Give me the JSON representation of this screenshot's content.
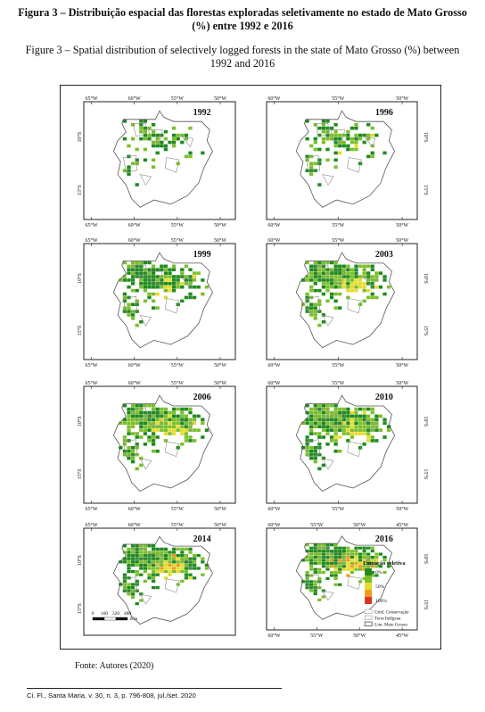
{
  "caption_pt": "Figura 3 – Distribuição espacial das florestas exploradas seletivamente no estado de Mato Grosso (%) entre 1992 e 2016",
  "caption_en": "Figure 3 – Spatial distribution of selectively logged forests in the state of Mato Grosso (%) between 1992 and 2016",
  "panels": [
    {
      "year": "1992",
      "top_ticks": [
        "65°W",
        "60°W",
        "55°W",
        "50°W"
      ],
      "bottom_ticks": [
        "65°W",
        "60°W",
        "55°W",
        "50°W"
      ],
      "left_ticks": [
        "10°S",
        "15°S"
      ],
      "right_ticks": []
    },
    {
      "year": "1996",
      "top_ticks": [
        "60°W",
        "55°W",
        "50°W"
      ],
      "bottom_ticks": [
        "60°W",
        "55°W",
        "50°W"
      ],
      "left_ticks": [],
      "right_ticks": [
        "10°S",
        "15°S"
      ]
    },
    {
      "year": "1999",
      "top_ticks": [
        "65°W",
        "60°W",
        "55°W",
        "50°W"
      ],
      "bottom_ticks": [
        "65°W",
        "60°W",
        "55°W",
        "50°W"
      ],
      "left_ticks": [
        "10°S",
        "15°S"
      ],
      "right_ticks": []
    },
    {
      "year": "2003",
      "top_ticks": [
        "60°W",
        "55°W",
        "50°W"
      ],
      "bottom_ticks": [
        "60°W",
        "55°W",
        "50°W"
      ],
      "left_ticks": [],
      "right_ticks": [
        "10°S",
        "15°S"
      ]
    },
    {
      "year": "2006",
      "top_ticks": [
        "65°W",
        "60°W",
        "55°W",
        "50°W"
      ],
      "bottom_ticks": [
        "65°W",
        "60°W",
        "55°W",
        "50°W"
      ],
      "left_ticks": [
        "10°S",
        "15°S"
      ],
      "right_ticks": []
    },
    {
      "year": "2010",
      "top_ticks": [
        "60°W",
        "55°W",
        "50°W"
      ],
      "bottom_ticks": [
        "60°W",
        "55°W",
        "50°W"
      ],
      "left_ticks": [],
      "right_ticks": [
        "10°S",
        "15°S"
      ]
    },
    {
      "year": "2014",
      "top_ticks": [
        "65°W",
        "60°W",
        "55°W",
        "50°W"
      ],
      "bottom_ticks": [],
      "left_ticks": [
        "10°S",
        "15°S"
      ],
      "right_ticks": []
    },
    {
      "year": "2016",
      "top_ticks": [
        "60°W",
        "55°W",
        "50°W",
        "45°W"
      ],
      "bottom_ticks": [
        "60°W",
        "55°W",
        "50°W",
        "45°W"
      ],
      "left_ticks": [],
      "right_ticks": [
        "10°S",
        "15°S"
      ]
    }
  ],
  "scale_bar": {
    "labels": [
      "0",
      "160",
      "320",
      "480"
    ],
    "unit": "Km"
  },
  "legend": {
    "title": "Extração seletiva",
    "classes": [
      {
        "label": "0%",
        "color": "#1f8a1f"
      },
      {
        "label": "",
        "color": "#7cbf2a"
      },
      {
        "label": "50%",
        "color": "#e6dc2e"
      },
      {
        "label": "",
        "color": "#f29a1e"
      },
      {
        "label": "100%",
        "color": "#d8331c"
      }
    ],
    "layers": [
      "Unid. Conservação",
      "Terra Indígena",
      "Lim. Mato Grosso"
    ]
  },
  "source": "Fonte: Autores (2020)",
  "footer": "Ci. Fl., Santa Maria, v. 30, n. 3, p. 796-808, jul./set. 2020"
}
